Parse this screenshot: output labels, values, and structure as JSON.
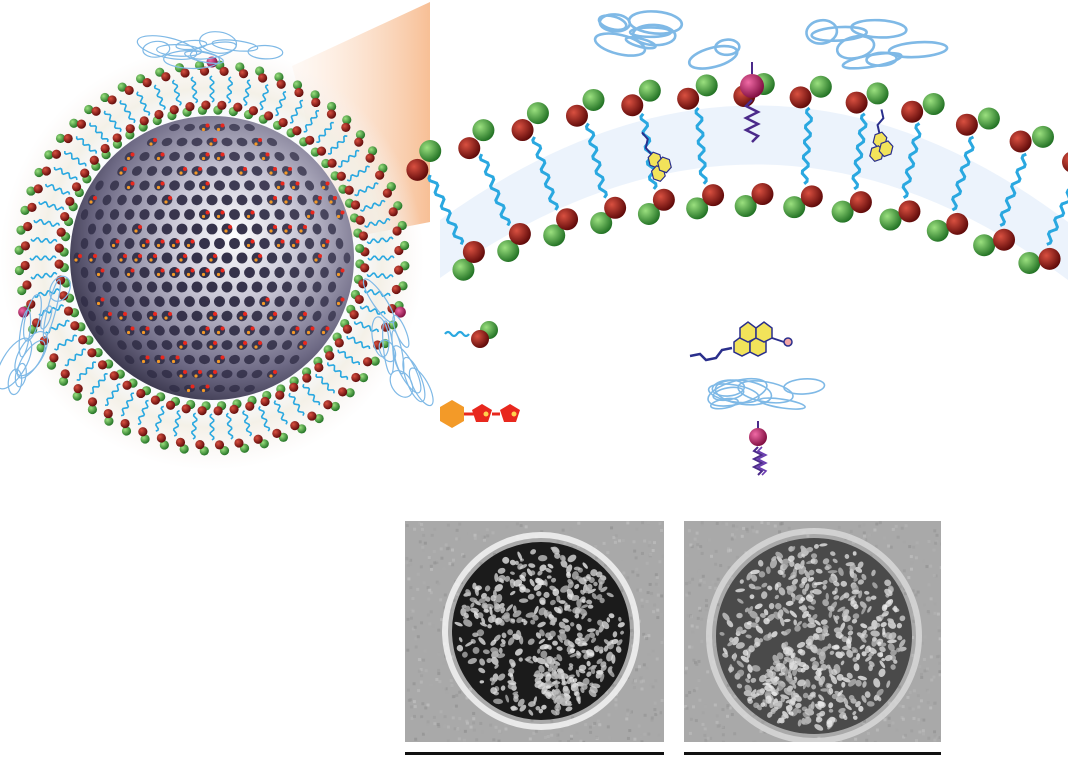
{
  "colors": {
    "phospholipid_head_green": "#2f8f2f",
    "phospholipid_head_red": "#8a1010",
    "lipid_tail_blue": "#2aa8e0",
    "peg_coil_blue": "#7fb9e6",
    "peg_anchor_magenta": "#b0175f",
    "peg_tail_purple": "#4b2a8a",
    "cholesterol_yellow": "#f2e35a",
    "drug_orange": "#f39a28",
    "drug_red": "#e8281e",
    "silica_core_dark": "#3f3c55",
    "zoom_wedge": "#f8c7a0"
  },
  "figure": {
    "nanoparticle": {
      "core": "mesoporous-silica-sphere",
      "shell": "supported-lipid-bilayer"
    },
    "zoom_view": "curved-bilayer-segment",
    "legend_items": [
      {
        "icon": "phospholipid-icon"
      },
      {
        "icon": "cholesterol-icon"
      },
      {
        "icon": "drug-molecule-icon"
      },
      {
        "icon": "peg-lipid-icon"
      }
    ],
    "micrographs": [
      {
        "icon": "cryo-em-bare-particle-icon"
      },
      {
        "icon": "cryo-em-coated-particle-icon"
      }
    ]
  }
}
